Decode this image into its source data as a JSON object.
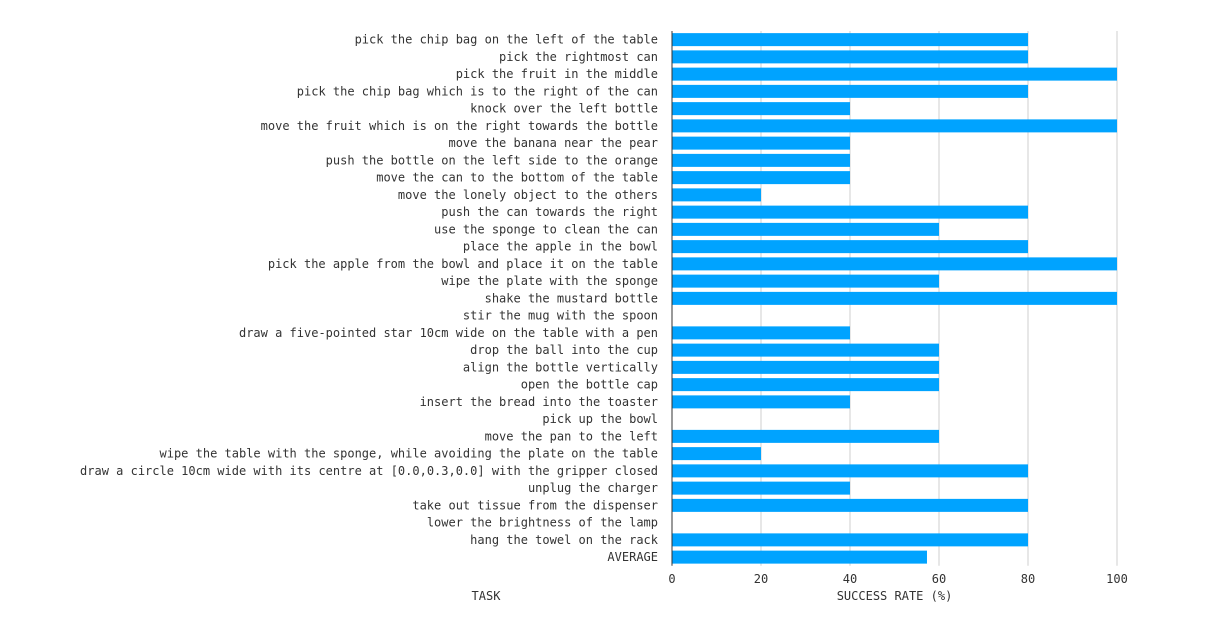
{
  "chart_data": {
    "type": "bar",
    "orientation": "horizontal",
    "title": "",
    "xlabel": "SUCCESS RATE (%)",
    "ylabel": "TASK",
    "xlim": [
      0,
      100
    ],
    "x_ticks": [
      0,
      20,
      40,
      60,
      80,
      100
    ],
    "grid": true,
    "bar_color": "#00a3ff",
    "categories": [
      "pick the chip bag on the left of the table",
      "pick the rightmost can",
      "pick the fruit in the middle",
      "pick the chip bag which is to the right of the can",
      "knock over the left bottle",
      "move the fruit which is on the right towards the bottle",
      "move the banana near the pear",
      "push the bottle on the left side to the orange",
      "move the can to the bottom of the table",
      "move the lonely object to the others",
      "push the can towards the right",
      "use the sponge to clean the can",
      "place the apple in the bowl",
      "pick the apple from the bowl and place it on the table",
      "wipe the plate with the sponge",
      "shake the mustard bottle",
      "stir the mug with the spoon",
      "draw a five-pointed star 10cm wide on the table with a pen",
      "drop the ball into the cup",
      "align the bottle vertically",
      "open the bottle cap",
      "insert the bread into the toaster",
      "pick up the bowl",
      "move the pan to the left",
      "wipe the table with the sponge, while avoiding the plate on the table",
      "draw a circle 10cm wide with its centre at [0.0,0.3,0.0] with the gripper closed",
      "unplug the charger",
      "take out tissue from the dispenser",
      "lower the brightness of the lamp",
      "hang the towel on the rack",
      "AVERAGE"
    ],
    "values": [
      80,
      80,
      100,
      80,
      40,
      100,
      40,
      40,
      40,
      20,
      80,
      60,
      80,
      100,
      60,
      100,
      0,
      40,
      60,
      60,
      60,
      40,
      0,
      60,
      20,
      80,
      40,
      80,
      0,
      80,
      57.3
    ]
  }
}
